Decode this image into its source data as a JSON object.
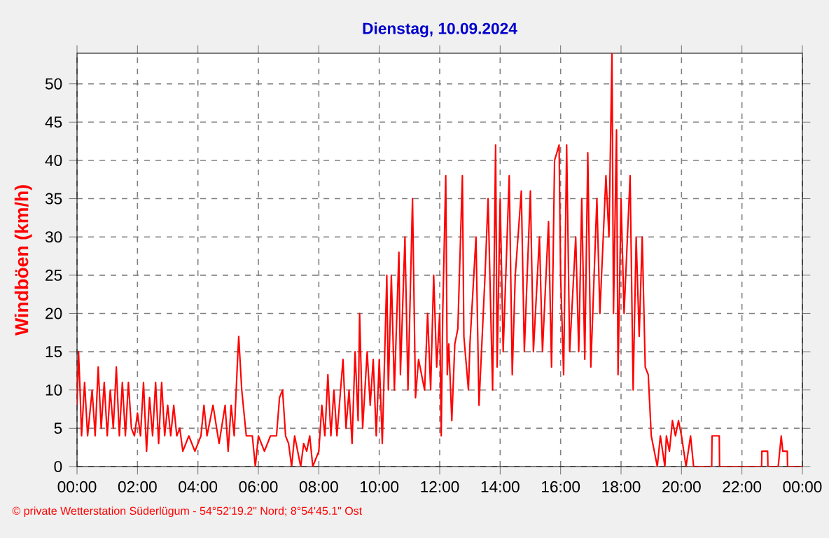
{
  "chart_data": {
    "type": "line",
    "title": "Dienstag, 10.09.2024",
    "ylabel": "Windböen (km/h)",
    "annotations": [
      "© private Wetterstation Süderlügum - 54°52'19.2\" Nord; 8°54'45.1\" Ost"
    ],
    "xlim": [
      0,
      24
    ],
    "ylim": [
      0,
      54
    ],
    "xticks": [
      {
        "value": 0,
        "label": "00:00"
      },
      {
        "value": 2,
        "label": "02:00"
      },
      {
        "value": 4,
        "label": "04:00"
      },
      {
        "value": 6,
        "label": "06:00"
      },
      {
        "value": 8,
        "label": "08:00"
      },
      {
        "value": 10,
        "label": "10:00"
      },
      {
        "value": 12,
        "label": "12:00"
      },
      {
        "value": 14,
        "label": "14:00"
      },
      {
        "value": 16,
        "label": "16:00"
      },
      {
        "value": 18,
        "label": "18:00"
      },
      {
        "value": 20,
        "label": "20:00"
      },
      {
        "value": 22,
        "label": "22:00"
      },
      {
        "value": 24,
        "label": "00:00"
      }
    ],
    "yticks": [
      0,
      5,
      10,
      15,
      20,
      25,
      30,
      35,
      40,
      45,
      50
    ],
    "grid": true,
    "x": [
      0.0,
      0.05,
      0.1,
      0.15,
      0.25,
      0.35,
      0.5,
      0.6,
      0.7,
      0.8,
      0.9,
      1.0,
      1.1,
      1.2,
      1.3,
      1.4,
      1.5,
      1.6,
      1.7,
      1.8,
      1.9,
      2.0,
      2.1,
      2.2,
      2.3,
      2.4,
      2.5,
      2.6,
      2.7,
      2.8,
      2.9,
      3.0,
      3.1,
      3.2,
      3.3,
      3.4,
      3.5,
      3.7,
      3.9,
      4.1,
      4.2,
      4.3,
      4.5,
      4.7,
      4.9,
      5.0,
      5.1,
      5.2,
      5.3,
      5.35,
      5.45,
      5.6,
      5.8,
      5.9,
      6.0,
      6.2,
      6.4,
      6.6,
      6.7,
      6.8,
      6.9,
      7.0,
      7.1,
      7.2,
      7.4,
      7.5,
      7.6,
      7.7,
      7.8,
      8.0,
      8.1,
      8.2,
      8.3,
      8.4,
      8.5,
      8.6,
      8.8,
      8.9,
      9.0,
      9.1,
      9.2,
      9.3,
      9.35,
      9.45,
      9.6,
      9.7,
      9.8,
      9.9,
      10.0,
      10.1,
      10.25,
      10.3,
      10.4,
      10.5,
      10.65,
      10.7,
      10.85,
      10.95,
      11.1,
      11.2,
      11.3,
      11.5,
      11.6,
      11.7,
      11.8,
      11.9,
      12.0,
      12.05,
      12.1,
      12.2,
      12.25,
      12.3,
      12.4,
      12.5,
      12.6,
      12.75,
      12.8,
      12.95,
      13.0,
      13.2,
      13.3,
      13.5,
      13.6,
      13.75,
      13.85,
      13.9,
      14.0,
      14.1,
      14.3,
      14.4,
      14.5,
      14.7,
      14.8,
      15.0,
      15.1,
      15.3,
      15.4,
      15.6,
      15.7,
      15.8,
      15.95,
      16.0,
      16.1,
      16.2,
      16.3,
      16.5,
      16.6,
      16.7,
      16.8,
      16.9,
      17.0,
      17.2,
      17.3,
      17.5,
      17.6,
      17.7,
      17.75,
      17.85,
      17.9,
      18.0,
      18.1,
      18.3,
      18.4,
      18.5,
      18.6,
      18.7,
      18.8,
      18.9,
      19.0,
      19.1,
      19.2,
      19.3,
      19.45,
      19.5,
      19.6,
      19.7,
      19.8,
      19.9,
      20.0,
      20.15,
      20.3,
      20.4,
      21.0,
      21.01,
      21.25,
      21.26,
      22.65,
      22.66,
      22.85,
      22.86,
      23.2,
      23.3,
      23.35,
      23.5,
      23.51,
      24.0
    ],
    "series": [
      {
        "color": "#ff0000",
        "values": [
          8,
          15,
          10,
          4,
          11,
          4,
          10,
          4,
          13,
          5,
          11,
          4,
          10,
          5,
          13,
          4,
          11,
          4,
          11,
          5,
          4,
          7,
          4,
          11,
          2,
          9,
          4,
          11,
          3,
          11,
          4,
          8,
          4,
          8,
          4,
          5,
          2,
          4,
          2,
          4,
          8,
          4,
          8,
          3,
          8,
          2,
          8,
          4,
          13,
          17,
          10,
          4,
          4,
          0,
          4,
          2,
          4,
          4,
          9,
          10,
          4,
          3,
          0,
          4,
          0,
          3,
          2,
          4,
          0,
          2,
          8,
          4,
          12,
          4,
          10,
          4,
          14,
          5,
          10,
          3,
          15,
          6,
          20,
          5,
          15,
          8,
          14,
          4,
          14,
          3,
          25,
          10,
          25,
          10,
          28,
          12,
          30,
          10,
          35,
          9,
          14,
          10,
          20,
          10,
          25,
          13,
          20,
          4,
          20,
          38,
          12,
          16,
          6,
          16,
          18,
          38,
          17,
          10,
          16,
          30,
          8,
          25,
          35,
          10,
          42,
          13,
          35,
          15,
          38,
          12,
          25,
          36,
          15,
          36,
          15,
          30,
          15,
          32,
          13,
          40,
          42,
          25,
          12,
          42,
          15,
          30,
          15,
          35,
          14,
          41,
          13,
          35,
          20,
          38,
          30,
          54,
          20,
          44,
          12,
          35,
          20,
          38,
          10,
          30,
          17,
          30,
          13,
          12,
          4,
          2,
          0,
          4,
          0,
          4,
          2,
          6,
          4,
          6,
          4,
          0,
          4,
          0,
          0,
          4,
          4,
          0,
          0,
          2,
          2,
          0,
          0,
          4,
          2,
          2,
          0,
          0
        ]
      }
    ]
  }
}
